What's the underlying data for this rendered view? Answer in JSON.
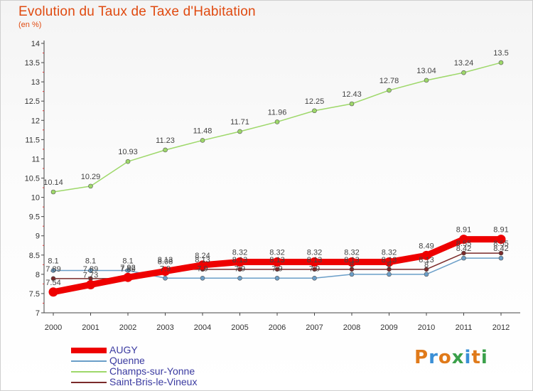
{
  "header": {
    "title": "Evolution du Taux de Taxe d'Habitation",
    "unit": "(en %)"
  },
  "brand": {
    "text": "Proxiti",
    "colors": [
      "#e07a1a",
      "#3a8fd6",
      "#e07a1a",
      "#3aa04a",
      "#3a8fd6",
      "#e07a1a",
      "#3aa04a"
    ]
  },
  "chart_data": {
    "type": "line",
    "x": [
      "2000",
      "2001",
      "2002",
      "2003",
      "2004",
      "2005",
      "2006",
      "2007",
      "2008",
      "2009",
      "2010",
      "2011",
      "2012"
    ],
    "ylim": [
      7,
      14
    ],
    "yticks": [
      "7",
      "7.5",
      "8",
      "8.5",
      "9",
      "9.5",
      "10",
      "10.5",
      "11",
      "11.5",
      "12",
      "12.5",
      "13",
      "13.5",
      "14"
    ],
    "grid": false,
    "legend_position": "bottom-left",
    "series": [
      {
        "name": "AUGY",
        "color": "#ee0000",
        "values": [
          7.54,
          7.73,
          7.92,
          8.08,
          8.24,
          8.32,
          8.32,
          8.32,
          8.32,
          8.32,
          8.49,
          8.91,
          8.91
        ],
        "labels": [
          "7.54",
          "7.73",
          "7.92",
          "8.08",
          "8.24",
          "8.32",
          "8.32",
          "8.32",
          "8.32",
          "8.32",
          "8.49",
          "8.91",
          "8.91"
        ]
      },
      {
        "name": "Quenne",
        "color": "#6a9ec8",
        "values": [
          8.1,
          8.1,
          8.1,
          7.9,
          7.9,
          7.9,
          7.9,
          7.9,
          8.0,
          8.0,
          8.0,
          8.42,
          8.42
        ],
        "labels": [
          "8.1",
          "8.1",
          "8.1",
          "7.9",
          "7.9",
          "7.9",
          "7.9",
          "7.9",
          "8",
          "8",
          "8",
          "8.42",
          "8.42"
        ]
      },
      {
        "name": "Champs-sur-Yonne",
        "color": "#9ed86a",
        "values": [
          10.14,
          10.29,
          10.93,
          11.23,
          11.48,
          11.71,
          11.96,
          12.25,
          12.43,
          12.78,
          13.04,
          13.24,
          13.5
        ],
        "labels": [
          "10.14",
          "10.29",
          "10.93",
          "11.23",
          "11.48",
          "11.71",
          "11.96",
          "12.25",
          "12.43",
          "12.78",
          "13.04",
          "13.24",
          "13.5"
        ]
      },
      {
        "name": "Saint-Bris-le-Vineux",
        "color": "#7a2a2a",
        "values": [
          7.89,
          7.89,
          7.89,
          8.13,
          8.13,
          8.13,
          8.13,
          8.13,
          8.13,
          8.13,
          8.13,
          8.55,
          8.55
        ],
        "labels": [
          "7.89",
          "7.89",
          "7.89",
          "8.13",
          "8.13",
          "8.13",
          "8.13",
          "8.13",
          "8.13",
          "8.13",
          "8.13",
          "8.55",
          "8.55"
        ]
      }
    ]
  }
}
